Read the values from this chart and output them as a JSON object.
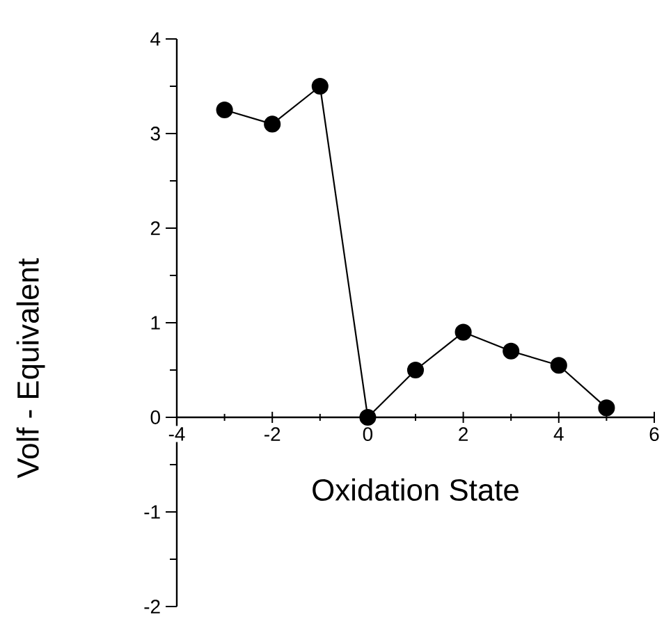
{
  "chart_data": {
    "type": "line",
    "xlabel": "Oxidation State",
    "ylabel": "Volf - Equivalent",
    "x": [
      -3,
      -2,
      -1,
      0,
      1,
      2,
      3,
      4,
      5
    ],
    "series": [
      {
        "color": "#000000",
        "values": [
          3.25,
          3.1,
          3.5,
          0,
          0.5,
          0.9,
          0.7,
          0.55,
          0.1
        ]
      }
    ],
    "xlim": [
      -4,
      6
    ],
    "ylim": [
      -2,
      4
    ],
    "xticks": [
      -4,
      -2,
      0,
      2,
      4,
      6
    ],
    "yticks": [
      -2,
      -1,
      0,
      1,
      2,
      3,
      4
    ],
    "marker": "circle",
    "line_style": "solid"
  }
}
